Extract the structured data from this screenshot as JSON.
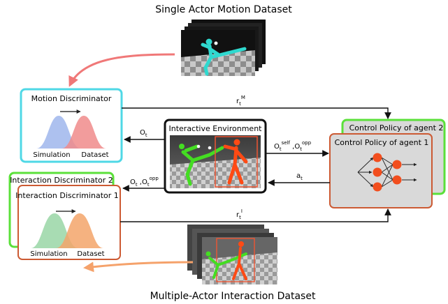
{
  "titles": {
    "top": "Single Actor Motion Dataset",
    "bottom": "Multiple-Actor Interaction Dataset"
  },
  "motion_discriminator": {
    "title": "Motion Discriminator",
    "left_label": "Simulation",
    "right_label": "Dataset"
  },
  "interaction_discriminator": {
    "back_title": "Interaction Discriminator 2",
    "title": "Interaction Discriminator 1",
    "left_label": "Simulation",
    "right_label": "Dataset"
  },
  "environment": {
    "title": "Interactive Environment"
  },
  "control_policy": {
    "back_title": "Control Policy of agent 2",
    "title": "Control Policy of agent 1"
  },
  "signals": {
    "rm": {
      "base": "r",
      "sub": "t",
      "sup": "M"
    },
    "ot": {
      "base": "O",
      "sub": "t"
    },
    "ot_opp_left": {
      "base1": "O",
      "sub1": "t",
      "sep": " ,",
      "base2": "O",
      "sub2": "t",
      "sup2": "opp"
    },
    "ot_self_opp": {
      "base1": "O",
      "sub1": "t",
      "sup1": "self",
      "sep": " ,",
      "base2": "O",
      "sub2": "t",
      "sup2": "opp"
    },
    "at": {
      "base": "a",
      "sub": "t"
    },
    "ri": {
      "base": "r",
      "sub": "t",
      "sup": "I"
    }
  },
  "colors": {
    "motion_border": "#4fd8e6",
    "interaction_outer": "#5be03a",
    "interaction_inner": "#cc5a33",
    "policy_outer": "#5be03a",
    "policy_inner": "#cc5a33",
    "env_border": "#111111",
    "dist_blue": "#9fb6ec",
    "dist_red": "#f08b8b",
    "dist_green": "#9ed8ab",
    "dist_orange": "#f3a46a",
    "agent_cyan": "#2fd9cf",
    "agent_green": "#44dd22",
    "agent_orange": "#ff4a14",
    "neuron": "#f24e1e",
    "arrow_pink": "#f07878",
    "arrow_orange": "#f5a26b"
  }
}
